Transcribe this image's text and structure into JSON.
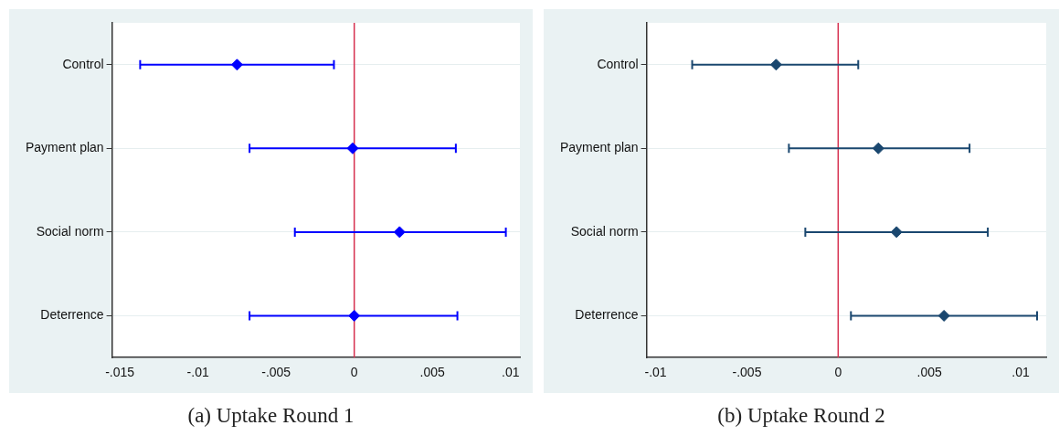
{
  "chart_data": [
    {
      "type": "scatter",
      "title": "(a) Uptake Round 1",
      "orientation": "horizontal",
      "categories": [
        "Control",
        "Payment plan",
        "Social norm",
        "Deterrence"
      ],
      "marker": "diamond",
      "grid": "y",
      "legend": false,
      "series": [
        {
          "color": "#0000ff",
          "values": [
            -0.0075,
            -0.0001,
            0.0029,
            0
          ],
          "errors": [
            [
              -0.0137,
              -0.0013
            ],
            [
              -0.0067,
              0.0065
            ],
            [
              -0.0038,
              0.0097
            ],
            [
              -0.0067,
              0.0066
            ]
          ]
        }
      ],
      "xlim": [
        -0.0155,
        0.0106
      ],
      "xticks": [
        {
          "value": -0.015,
          "label": "-.015"
        },
        {
          "value": -0.01,
          "label": "-.01"
        },
        {
          "value": -0.005,
          "label": "-.005"
        },
        0,
        {
          "value": 0.005,
          "label": ".005"
        },
        {
          "value": 0.01,
          "label": ".01"
        }
      ],
      "ref_lines": [
        {
          "axis": "x",
          "value": 0,
          "color": "#d6304f"
        }
      ]
    },
    {
      "type": "scatter",
      "title": "(b) Uptake Round 2",
      "orientation": "horizontal",
      "categories": [
        "Control",
        "Payment plan",
        "Social norm",
        "Deterrence"
      ],
      "marker": "diamond",
      "grid": "y",
      "legend": false,
      "series": [
        {
          "color": "#1a476f",
          "values": [
            -0.0034,
            0.0022,
            0.0032,
            0.0058
          ],
          "errors": [
            [
              -0.008,
              0.0011
            ],
            [
              -0.0027,
              0.0072
            ],
            [
              -0.0018,
              0.0082
            ],
            [
              0.0007,
              0.0109
            ]
          ]
        }
      ],
      "xlim": [
        -0.0105,
        0.0114
      ],
      "xticks": [
        {
          "value": -0.01,
          "label": "-.01"
        },
        {
          "value": -0.005,
          "label": "-.005"
        },
        0,
        {
          "value": 0.005,
          "label": ".005"
        },
        {
          "value": 0.01,
          "label": ".01"
        }
      ],
      "ref_lines": [
        {
          "axis": "x",
          "value": 0,
          "color": "#d6304f"
        }
      ]
    }
  ]
}
